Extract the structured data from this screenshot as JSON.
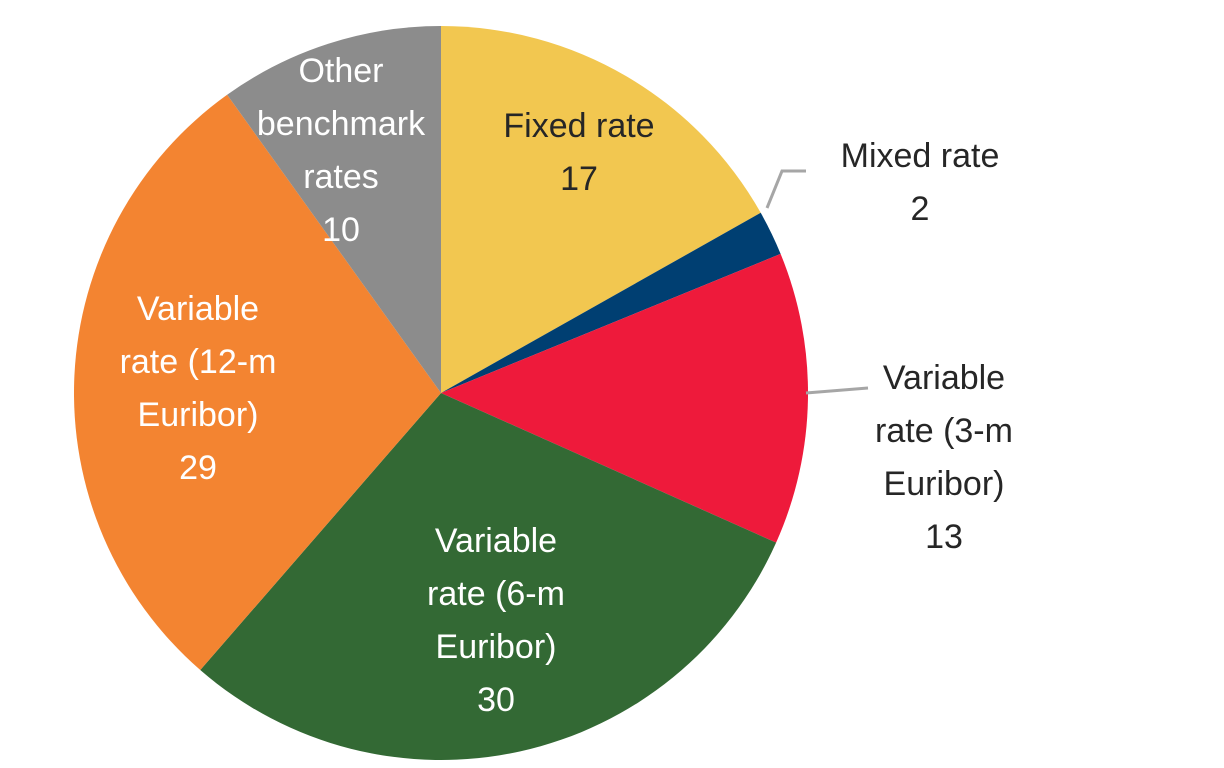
{
  "chart_data": {
    "type": "pie",
    "title": "",
    "slices": [
      {
        "lines": [
          "Fixed rate"
        ],
        "value": 17,
        "value_text": "17",
        "color": "#F2C750",
        "label_color": "#262626"
      },
      {
        "lines": [
          "Mixed rate"
        ],
        "value": 2,
        "value_text": "2",
        "color": "#003F72",
        "label_color": "#262626"
      },
      {
        "lines": [
          "Variable",
          "rate (3-m",
          "Euribor)"
        ],
        "value": 13,
        "value_text": "13",
        "color": "#EE1A3B",
        "label_color": "#262626"
      },
      {
        "lines": [
          "Variable",
          "rate (6-m",
          "Euribor)"
        ],
        "value": 30,
        "value_text": "30",
        "color": "#336934",
        "label_color": "#ffffff"
      },
      {
        "lines": [
          "Variable",
          "rate (12-m",
          "Euribor)"
        ],
        "value": 29,
        "value_text": "29",
        "color": "#F38431",
        "label_color": "#ffffff"
      },
      {
        "lines": [
          "Other",
          "benchmark",
          "rates"
        ],
        "value": 10,
        "value_text": "10",
        "color": "#8C8C8C",
        "label_color": "#ffffff"
      }
    ],
    "leader_line_color": "#A6A6A6"
  }
}
